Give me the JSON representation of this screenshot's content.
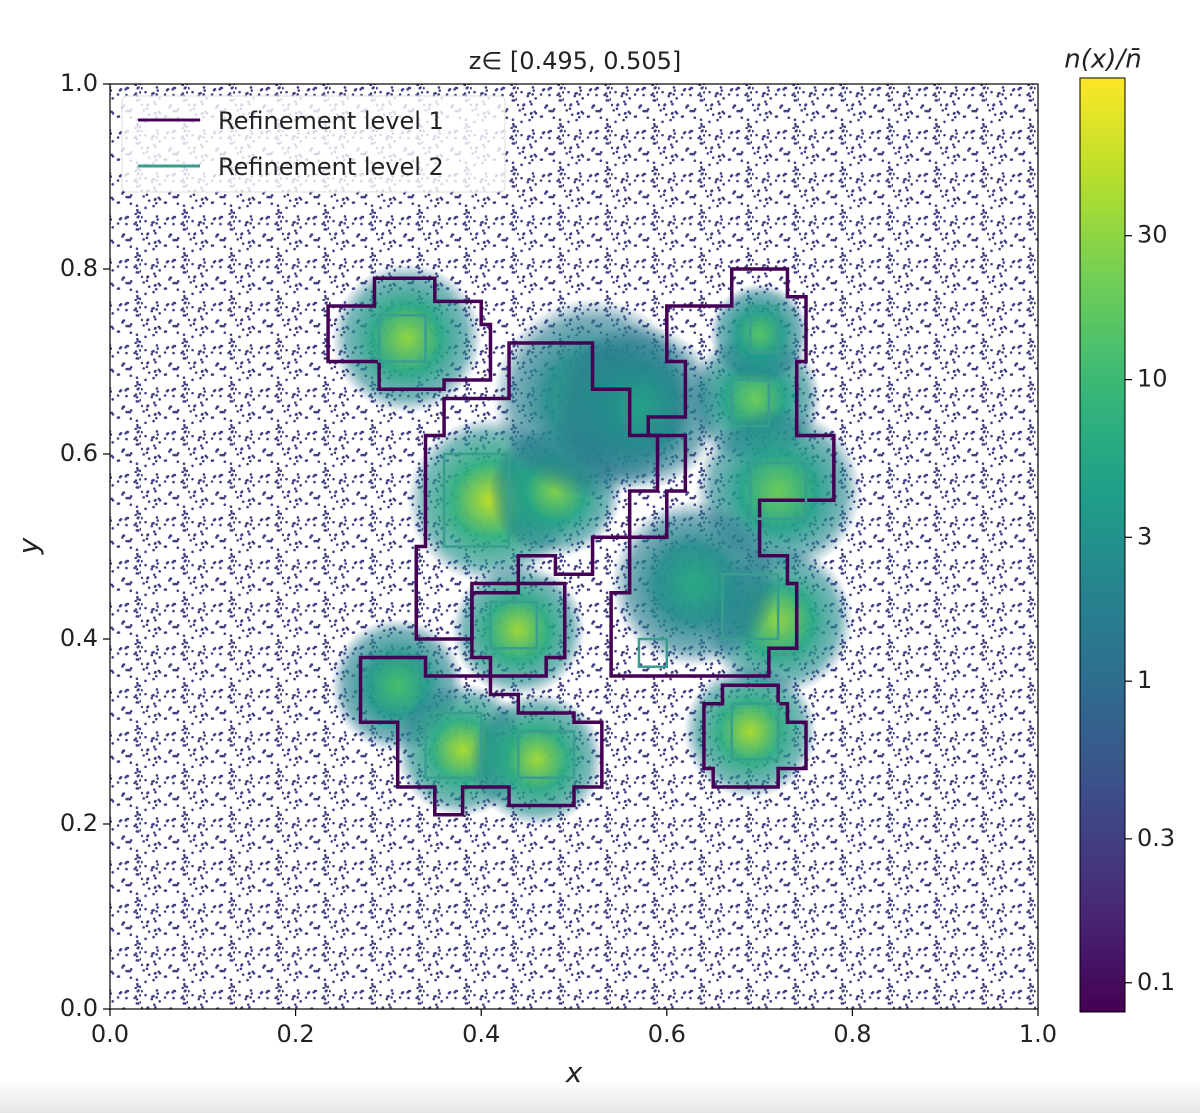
{
  "chart_data": {
    "type": "density",
    "title": "z∈ [0.495, 0.505]",
    "xlabel": "x",
    "ylabel": "y",
    "xlim": [
      0,
      1
    ],
    "ylim": [
      0,
      1
    ],
    "xticks": [
      {
        "value": 0,
        "label": "0.0"
      },
      {
        "value": 0.2,
        "label": "0.2"
      },
      {
        "value": 0.4,
        "label": "0.4"
      },
      {
        "value": 0.6,
        "label": "0.6"
      },
      {
        "value": 0.8,
        "label": "0.8"
      },
      {
        "value": 1,
        "label": "1.0"
      }
    ],
    "yticks": [
      {
        "value": 0,
        "label": "0.0"
      },
      {
        "value": 0.2,
        "label": "0.2"
      },
      {
        "value": 0.4,
        "label": "0.4"
      },
      {
        "value": 0.6,
        "label": "0.6"
      },
      {
        "value": 0.8,
        "label": "0.8"
      },
      {
        "value": 1,
        "label": "1.0"
      }
    ],
    "colorbar_label": "n(x)/n̄",
    "log_color_scale": true,
    "clim": [
      0.08,
      100
    ],
    "cticks": [
      0.1,
      0.3,
      1,
      3,
      10,
      30
    ],
    "background": 0.3,
    "clusters": [
      {
        "x": 0.32,
        "y": 0.725,
        "peak": 30,
        "radius": 0.045
      },
      {
        "x": 0.41,
        "y": 0.55,
        "peak": 50,
        "radius": 0.05
      },
      {
        "x": 0.48,
        "y": 0.56,
        "peak": 25,
        "radius": 0.04
      },
      {
        "x": 0.44,
        "y": 0.41,
        "peak": 35,
        "radius": 0.04
      },
      {
        "x": 0.52,
        "y": 0.66,
        "peak": 6,
        "radius": 0.06
      },
      {
        "x": 0.57,
        "y": 0.65,
        "peak": 5,
        "radius": 0.05
      },
      {
        "x": 0.695,
        "y": 0.66,
        "peak": 20,
        "radius": 0.04
      },
      {
        "x": 0.7,
        "y": 0.73,
        "peak": 15,
        "radius": 0.03
      },
      {
        "x": 0.72,
        "y": 0.56,
        "peak": 20,
        "radius": 0.05
      },
      {
        "x": 0.72,
        "y": 0.42,
        "peak": 30,
        "radius": 0.045
      },
      {
        "x": 0.63,
        "y": 0.46,
        "peak": 6,
        "radius": 0.05
      },
      {
        "x": 0.31,
        "y": 0.35,
        "peak": 12,
        "radius": 0.04
      },
      {
        "x": 0.38,
        "y": 0.28,
        "peak": 40,
        "radius": 0.04
      },
      {
        "x": 0.46,
        "y": 0.27,
        "peak": 35,
        "radius": 0.04
      },
      {
        "x": 0.69,
        "y": 0.3,
        "peak": 40,
        "radius": 0.04
      }
    ],
    "legend_loc": "upper left",
    "series": [
      {
        "name": "Refinement level 1",
        "color": "#440154",
        "polygons": [
          {
            "x": [
              0.235,
              0.285,
              0.285,
              0.35,
              0.35,
              0.4,
              0.4,
              0.41,
              0.41,
              0.36,
              0.36,
              0.29,
              0.29,
              0.235
            ],
            "y": [
              0.76,
              0.76,
              0.79,
              0.79,
              0.765,
              0.765,
              0.74,
              0.74,
              0.68,
              0.68,
              0.67,
              0.67,
              0.7,
              0.7
            ]
          },
          {
            "x": [
              0.43,
              0.52,
              0.52,
              0.56,
              0.56,
              0.59,
              0.59,
              0.56,
              0.56,
              0.52,
              0.52,
              0.48,
              0.48,
              0.44,
              0.44,
              0.39,
              0.39,
              0.33,
              0.33,
              0.34,
              0.34,
              0.36,
              0.36,
              0.43
            ],
            "y": [
              0.72,
              0.72,
              0.67,
              0.67,
              0.62,
              0.62,
              0.56,
              0.56,
              0.51,
              0.51,
              0.47,
              0.47,
              0.49,
              0.49,
              0.45,
              0.45,
              0.4,
              0.4,
              0.5,
              0.5,
              0.62,
              0.62,
              0.66,
              0.66
            ]
          },
          {
            "x": [
              0.39,
              0.49,
              0.49,
              0.47,
              0.47,
              0.41,
              0.41,
              0.39
            ],
            "y": [
              0.46,
              0.46,
              0.38,
              0.38,
              0.36,
              0.36,
              0.38,
              0.38
            ]
          },
          {
            "x": [
              0.6,
              0.67,
              0.67,
              0.73,
              0.73,
              0.75,
              0.75,
              0.74,
              0.74,
              0.78,
              0.78,
              0.7,
              0.7,
              0.73,
              0.73,
              0.74,
              0.74,
              0.71,
              0.71,
              0.54,
              0.54,
              0.56,
              0.56,
              0.6,
              0.6,
              0.62,
              0.62,
              0.58,
              0.58,
              0.62,
              0.62,
              0.6
            ],
            "y": [
              0.76,
              0.76,
              0.8,
              0.8,
              0.77,
              0.77,
              0.7,
              0.7,
              0.62,
              0.62,
              0.55,
              0.55,
              0.49,
              0.49,
              0.46,
              0.46,
              0.39,
              0.39,
              0.36,
              0.36,
              0.45,
              0.45,
              0.51,
              0.51,
              0.56,
              0.56,
              0.62,
              0.62,
              0.64,
              0.64,
              0.7,
              0.7
            ]
          },
          {
            "x": [
              0.27,
              0.34,
              0.34,
              0.41,
              0.41,
              0.44,
              0.44,
              0.5,
              0.5,
              0.53,
              0.53,
              0.5,
              0.5,
              0.43,
              0.43,
              0.38,
              0.38,
              0.35,
              0.35,
              0.31,
              0.31,
              0.27
            ],
            "y": [
              0.38,
              0.38,
              0.36,
              0.36,
              0.34,
              0.34,
              0.32,
              0.32,
              0.31,
              0.31,
              0.24,
              0.24,
              0.22,
              0.22,
              0.24,
              0.24,
              0.21,
              0.21,
              0.24,
              0.24,
              0.31,
              0.31
            ]
          },
          {
            "x": [
              0.64,
              0.66,
              0.66,
              0.72,
              0.72,
              0.73,
              0.73,
              0.75,
              0.75,
              0.72,
              0.72,
              0.65,
              0.65,
              0.64
            ],
            "y": [
              0.33,
              0.33,
              0.35,
              0.35,
              0.33,
              0.33,
              0.31,
              0.31,
              0.26,
              0.26,
              0.24,
              0.24,
              0.26,
              0.26
            ]
          }
        ]
      },
      {
        "name": "Refinement level 2",
        "color": "#3a9e8f",
        "polygons": [
          {
            "x": [
              0.29,
              0.34,
              0.34,
              0.29
            ],
            "y": [
              0.75,
              0.75,
              0.7,
              0.7
            ]
          },
          {
            "x": [
              0.36,
              0.43,
              0.43,
              0.36
            ],
            "y": [
              0.6,
              0.6,
              0.5,
              0.5
            ]
          },
          {
            "x": [
              0.41,
              0.46,
              0.46,
              0.41
            ],
            "y": [
              0.44,
              0.44,
              0.39,
              0.39
            ]
          },
          {
            "x": [
              0.67,
              0.71,
              0.71,
              0.67
            ],
            "y": [
              0.68,
              0.68,
              0.63,
              0.63
            ]
          },
          {
            "x": [
              0.69,
              0.75,
              0.75,
              0.69
            ],
            "y": [
              0.59,
              0.59,
              0.53,
              0.53
            ]
          },
          {
            "x": [
              0.66,
              0.72,
              0.72,
              0.66
            ],
            "y": [
              0.47,
              0.47,
              0.4,
              0.4
            ]
          },
          {
            "x": [
              0.34,
              0.4,
              0.4,
              0.34
            ],
            "y": [
              0.32,
              0.32,
              0.25,
              0.25
            ]
          },
          {
            "x": [
              0.44,
              0.5,
              0.5,
              0.44
            ],
            "y": [
              0.3,
              0.3,
              0.25,
              0.25
            ]
          },
          {
            "x": [
              0.67,
              0.72,
              0.72,
              0.67
            ],
            "y": [
              0.33,
              0.33,
              0.27,
              0.27
            ]
          },
          {
            "x": [
              0.69,
              0.72,
              0.72,
              0.69
            ],
            "y": [
              0.76,
              0.76,
              0.71,
              0.71
            ]
          },
          {
            "x": [
              0.57,
              0.6,
              0.6,
              0.57
            ],
            "y": [
              0.4,
              0.4,
              0.37,
              0.37
            ]
          }
        ]
      }
    ]
  }
}
